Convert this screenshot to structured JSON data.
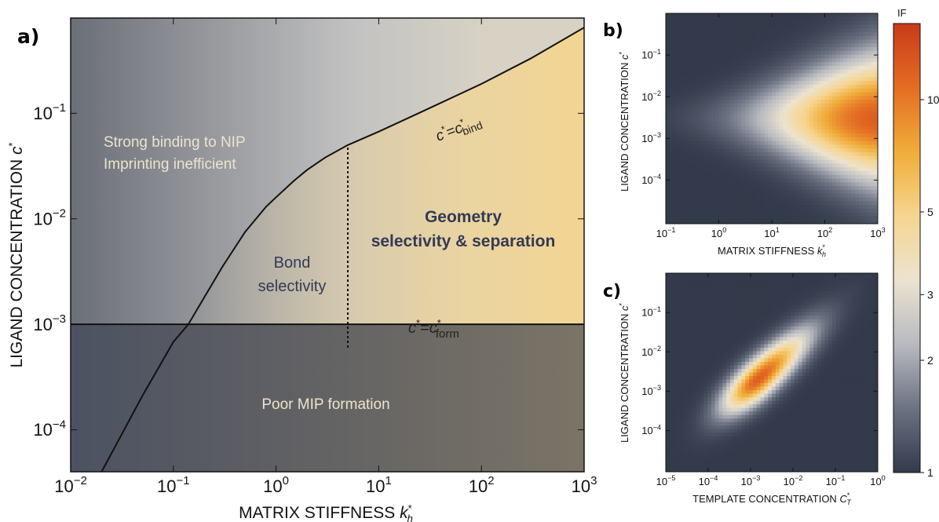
{
  "chart_data": [
    {
      "type": "area",
      "panel": "a)",
      "xlabel": "MATRIX STIFFNESS",
      "xlabel_symbol": "k",
      "xlabel_sup": "*",
      "xlabel_sub": "h",
      "ylabel": "LIGAND CONCENTRATION",
      "ylabel_symbol": "c",
      "ylabel_sup": "*",
      "x_scale": "log",
      "y_scale": "log",
      "xlim": [
        0.01,
        1000
      ],
      "ylim": [
        4e-05,
        0.8
      ],
      "x_ticks": [
        {
          "v": 0.01,
          "base": "10",
          "exp": "−2"
        },
        {
          "v": 0.1,
          "base": "10",
          "exp": "−1"
        },
        {
          "v": 1,
          "base": "10",
          "exp": "0"
        },
        {
          "v": 10,
          "base": "10",
          "exp": "1"
        },
        {
          "v": 100,
          "base": "10",
          "exp": "2"
        },
        {
          "v": 1000,
          "base": "10",
          "exp": "3"
        }
      ],
      "y_ticks": [
        {
          "v": 0.0001,
          "base": "10",
          "exp": "−4"
        },
        {
          "v": 0.001,
          "base": "10",
          "exp": "−3"
        },
        {
          "v": 0.01,
          "base": "10",
          "exp": "−2"
        },
        {
          "v": 0.1,
          "base": "10",
          "exp": "−1"
        }
      ],
      "c_bind_curve": {
        "x": [
          0.02,
          0.05,
          0.1,
          0.14,
          0.2,
          0.3,
          0.5,
          0.8,
          1,
          1.5,
          2,
          3,
          5,
          10,
          30,
          100,
          300,
          1000
        ],
        "y": [
          4e-05,
          0.00021,
          0.00068,
          0.001,
          0.0018,
          0.0035,
          0.0075,
          0.013,
          0.016,
          0.023,
          0.029,
          0.038,
          0.05,
          0.067,
          0.11,
          0.19,
          0.33,
          0.65
        ]
      },
      "c_form_level": 0.001,
      "divider": {
        "x": 5,
        "y_from": 0.0006,
        "y_to": 0.05
      },
      "annotations": {
        "c_bind": {
          "lhs": "c",
          "sup": "*",
          "eq": "=",
          "rhs": "c",
          "rhs_sup": "*",
          "rhs_sub": "bind"
        },
        "c_form": {
          "lhs": "c",
          "sup": "*",
          "eq": "=",
          "rhs": "c",
          "rhs_sup": "*",
          "rhs_sub": "form"
        },
        "region_nip": [
          "Strong binding to NIP",
          "Imprinting inefficient"
        ],
        "region_bond": [
          "Bond",
          "selectivity"
        ],
        "region_geometry": [
          "Geometry",
          "selectivity & separation"
        ],
        "region_poor": "Poor MIP formation"
      },
      "colors": {
        "grey_dark": "#6b6f78",
        "grey_light": "#c2c2c2",
        "beige_light": "#d7d2c4",
        "yellow": "#f3d592",
        "bottom_left": "#4c5262",
        "bottom_right": "#7b7466",
        "light_text": "#ece4cc",
        "dark_text": "#333a55"
      }
    },
    {
      "type": "heatmap",
      "panel": "b)",
      "xlabel": "MATRIX STIFFNESS",
      "xlabel_symbol": "k",
      "xlabel_sup": "*",
      "xlabel_sub": "h",
      "ylabel": "LIGAND CONCENTRATION",
      "ylabel_symbol": "c",
      "ylabel_sup": "*",
      "x_scale": "log",
      "y_scale": "log",
      "xlim": [
        0.1,
        1000
      ],
      "ylim": [
        9e-06,
        1.0
      ],
      "x_ticks": [
        {
          "v": 0.1,
          "base": "10",
          "exp": "−1"
        },
        {
          "v": 1,
          "base": "10",
          "exp": "0"
        },
        {
          "v": 10,
          "base": "10",
          "exp": "1"
        },
        {
          "v": 100,
          "base": "10",
          "exp": "2"
        },
        {
          "v": 1000,
          "base": "10",
          "exp": "3"
        }
      ],
      "y_ticks": [
        {
          "v": 0.0001,
          "base": "10",
          "exp": "−4"
        },
        {
          "v": 0.001,
          "base": "10",
          "exp": "−3"
        },
        {
          "v": 0.01,
          "base": "10",
          "exp": "−2"
        },
        {
          "v": 0.1,
          "base": "10",
          "exp": "−1"
        }
      ],
      "peak": {
        "x": 1000,
        "y": 0.003,
        "if": 12
      }
    },
    {
      "type": "heatmap",
      "panel": "c)",
      "xlabel": "TEMPLATE CONCENTRATION",
      "xlabel_symbol": "C",
      "xlabel_sup": "*",
      "xlabel_sub": "T",
      "ylabel": "LIGAND CONCENTRATION",
      "ylabel_symbol": "c",
      "ylabel_sup": "*",
      "x_scale": "log",
      "y_scale": "log",
      "xlim": [
        1e-05,
        1
      ],
      "ylim": [
        9e-06,
        1.0
      ],
      "x_ticks": [
        {
          "v": 1e-05,
          "base": "10",
          "exp": "−5"
        },
        {
          "v": 0.0001,
          "base": "10",
          "exp": "−4"
        },
        {
          "v": 0.001,
          "base": "10",
          "exp": "−3"
        },
        {
          "v": 0.01,
          "base": "10",
          "exp": "−2"
        },
        {
          "v": 0.1,
          "base": "10",
          "exp": "−1"
        },
        {
          "v": 1,
          "base": "10",
          "exp": "0"
        }
      ],
      "y_ticks": [
        {
          "v": 0.0001,
          "base": "10",
          "exp": "−4"
        },
        {
          "v": 0.001,
          "base": "10",
          "exp": "−3"
        },
        {
          "v": 0.01,
          "base": "10",
          "exp": "−2"
        },
        {
          "v": 0.1,
          "base": "10",
          "exp": "−1"
        }
      ],
      "peak": {
        "x": 0.0015,
        "y": 0.002,
        "if": 12
      }
    }
  ],
  "colorbar": {
    "label": "IF",
    "scale": "log",
    "range": [
      1,
      16
    ],
    "ticks": [
      {
        "v": 1,
        "label": "1"
      },
      {
        "v": 2,
        "label": "2"
      },
      {
        "v": 3,
        "label": "3"
      },
      {
        "v": 5,
        "label": "5"
      },
      {
        "v": 10,
        "label": "10"
      }
    ],
    "colors": [
      "#323a4b",
      "#6c7282",
      "#b8bac0",
      "#ece3cf",
      "#f6d590",
      "#f0ad3a",
      "#e46d23",
      "#c93a1a"
    ]
  }
}
